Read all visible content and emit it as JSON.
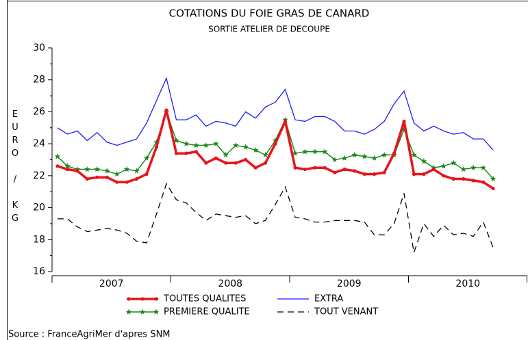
{
  "chart_data": {
    "type": "line",
    "title": "COTATIONS DU FOIE GRAS DE CANARD",
    "subtitle": "SORTIE ATELIER DE DECOUPE",
    "y_label": "EURO / KG",
    "source": "Source : FranceAgriMer d'apres SNM",
    "year_labels": [
      "2007",
      "2008",
      "2009",
      "2010"
    ],
    "categories": [
      null,
      null,
      null,
      null,
      null,
      null,
      null,
      null,
      null,
      null,
      null,
      null,
      null,
      null,
      null,
      null,
      null,
      null,
      null,
      null,
      null,
      null,
      null,
      null,
      null,
      null,
      null,
      null,
      null,
      null,
      null,
      null,
      null,
      null,
      null,
      null,
      null,
      null,
      null,
      null,
      null,
      null,
      null,
      null,
      null
    ],
    "ylim": [
      16,
      30
    ],
    "yticks": [
      16,
      18,
      20,
      22,
      24,
      26,
      28,
      30
    ],
    "series": [
      {
        "name": "TOUTES QUALITES",
        "color": "#e8141c",
        "marker": "dot",
        "values": [
          22.6,
          22.4,
          22.3,
          21.8,
          21.9,
          21.9,
          21.6,
          21.6,
          21.8,
          22.1,
          23.8,
          26.1,
          23.4,
          23.4,
          23.5,
          22.8,
          23.1,
          22.8,
          22.8,
          23.0,
          22.5,
          22.8,
          24.0,
          25.4,
          22.5,
          22.4,
          22.5,
          22.5,
          22.2,
          22.4,
          22.3,
          22.1,
          22.1,
          22.2,
          23.4,
          25.4,
          22.1,
          22.1,
          22.4,
          22.0,
          21.8,
          21.8,
          21.7,
          21.6,
          21.2
        ]
      },
      {
        "name": "EXTRA",
        "color": "#1a1aff",
        "marker": "none",
        "values": [
          25.0,
          24.6,
          24.8,
          24.2,
          24.7,
          24.1,
          23.9,
          24.1,
          24.3,
          25.3,
          26.7,
          28.1,
          25.5,
          25.5,
          25.8,
          25.1,
          25.4,
          25.3,
          25.1,
          26.0,
          25.6,
          26.3,
          26.6,
          27.4,
          25.5,
          25.4,
          25.7,
          25.7,
          25.4,
          24.8,
          24.8,
          24.6,
          24.9,
          25.4,
          26.5,
          27.3,
          25.3,
          24.8,
          25.1,
          24.8,
          24.6,
          24.7,
          24.3,
          24.3,
          23.6
        ]
      },
      {
        "name": "PREMIERE QUALITE",
        "color": "#1a8a1a",
        "marker": "star",
        "values": [
          23.2,
          22.6,
          22.4,
          22.4,
          22.4,
          22.3,
          22.1,
          22.4,
          22.3,
          23.1,
          24.1,
          26.0,
          24.2,
          24.0,
          23.9,
          23.9,
          24.0,
          23.3,
          23.9,
          23.8,
          23.6,
          23.3,
          24.2,
          25.5,
          23.4,
          23.5,
          23.5,
          23.5,
          23.0,
          23.1,
          23.3,
          23.2,
          23.1,
          23.3,
          23.3,
          24.9,
          23.3,
          22.9,
          22.5,
          22.6,
          22.8,
          22.4,
          22.5,
          22.5,
          21.8
        ]
      },
      {
        "name": "TOUT VENANT",
        "color": "#000000",
        "marker": "none",
        "dashed": true,
        "values": [
          19.3,
          19.3,
          18.8,
          18.5,
          18.6,
          18.7,
          18.6,
          18.4,
          17.9,
          17.8,
          19.6,
          21.5,
          20.5,
          20.3,
          19.7,
          19.2,
          19.6,
          19.5,
          19.4,
          19.5,
          19.0,
          19.2,
          20.2,
          21.3,
          19.4,
          19.3,
          19.1,
          19.1,
          19.2,
          19.2,
          19.2,
          19.1,
          18.3,
          18.3,
          19.0,
          20.9,
          17.2,
          19.0,
          18.2,
          18.9,
          18.3,
          18.4,
          18.2,
          19.1,
          17.5
        ]
      }
    ]
  }
}
